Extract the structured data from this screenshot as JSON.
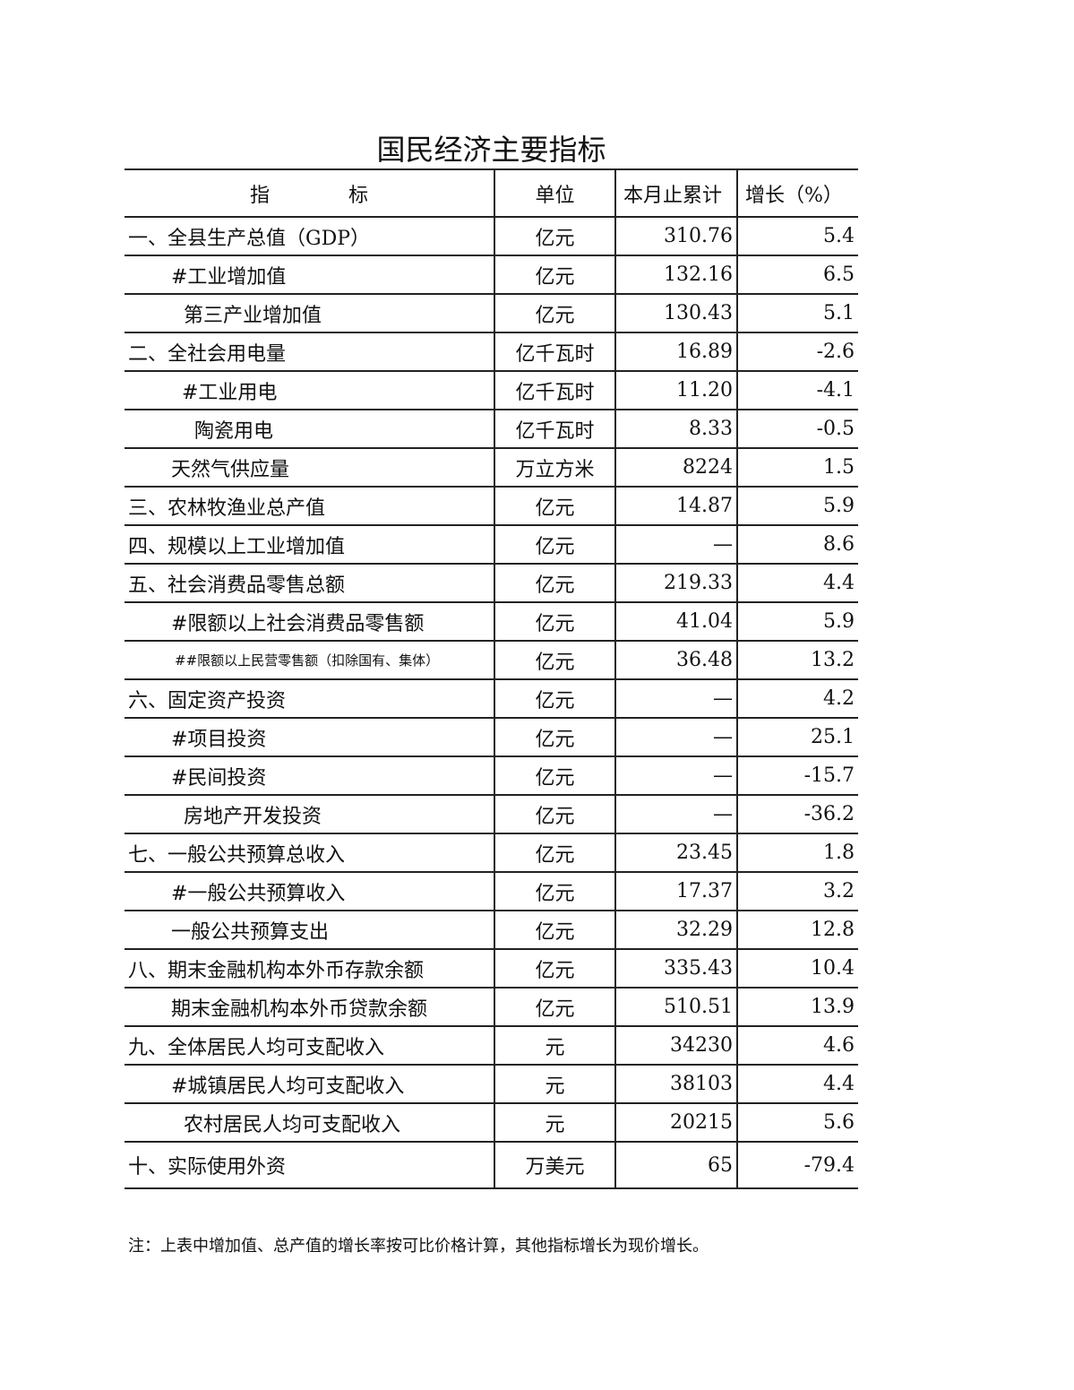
{
  "title": "国民经济主要指标",
  "table": {
    "headers": [
      "指　　　　标",
      "单位",
      "本月止累计",
      "增长（%）"
    ],
    "rows": [
      [
        "一、全县生产总值（GDP）",
        "亿元",
        "310.76",
        "5.4"
      ],
      [
        "#工业增加值",
        "亿元",
        "132.16",
        "6.5"
      ],
      [
        "第三产业增加值",
        "亿元",
        "130.43",
        "5.1"
      ],
      [
        "二、全社会用电量",
        "亿千瓦时",
        "16.89",
        "-2.6"
      ],
      [
        "#工业用电",
        "亿千瓦时",
        "11.20",
        "-4.1"
      ],
      [
        "陶瓷用电",
        "亿千瓦时",
        "8.33",
        "-0.5"
      ],
      [
        "天然气供应量",
        "万立方米",
        "8224",
        "1.5"
      ],
      [
        "三、农林牧渔业总产值",
        "亿元",
        "14.87",
        "5.9"
      ],
      [
        "四、规模以上工业增加值",
        "亿元",
        "—",
        "8.6"
      ],
      [
        "五、社会消费品零售总额",
        "亿元",
        "219.33",
        "4.4"
      ],
      [
        "#限额以上社会消费品零售额",
        "亿元",
        "41.04",
        "5.9"
      ],
      [
        "##限额以上民营零售额（扣除国有、集体）",
        "亿元",
        "36.48",
        "13.2"
      ],
      [
        "六、固定资产投资",
        "亿元",
        "—",
        "4.2"
      ],
      [
        "#项目投资",
        "亿元",
        "—",
        "25.1"
      ],
      [
        "#民间投资",
        "亿元",
        "—",
        "-15.7"
      ],
      [
        "房地产开发投资",
        "亿元",
        "—",
        "-36.2"
      ],
      [
        "七、一般公共预算总收入",
        "亿元",
        "23.45",
        "1.8"
      ],
      [
        "#一般公共预算收入",
        "亿元",
        "17.37",
        "3.2"
      ],
      [
        "一般公共预算支出",
        "亿元",
        "32.29",
        "12.8"
      ],
      [
        "八、期末金融机构本外币存款余额",
        "亿元",
        "335.43",
        "10.4"
      ],
      [
        "期末金融机构本外币贷款余额",
        "亿元",
        "510.51",
        "13.9"
      ],
      [
        "九、全体居民人均可支配收入",
        "元",
        "34230",
        "4.6"
      ],
      [
        "#城镇居民人均可支配收入",
        "元",
        "38103",
        "4.4"
      ],
      [
        "农村居民人均可支配收入",
        "元",
        "20215",
        "5.6"
      ],
      [
        "十、实际使用外资",
        "万美元",
        "65",
        "-79.4"
      ]
    ]
  },
  "note": "注：上表中增加值、总产值的增长率按可比价格计算，其他指标增长为现价增长。"
}
